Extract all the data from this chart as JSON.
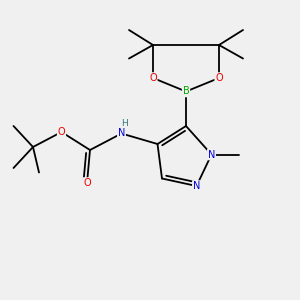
{
  "bg_color": "#f0f0f0",
  "atom_colors": {
    "C": "#000000",
    "N": "#0000dd",
    "O": "#ee0000",
    "B": "#00aa00",
    "H": "#337777"
  },
  "bond_color": "#000000",
  "bond_width": 1.3,
  "font_size": 7.0
}
